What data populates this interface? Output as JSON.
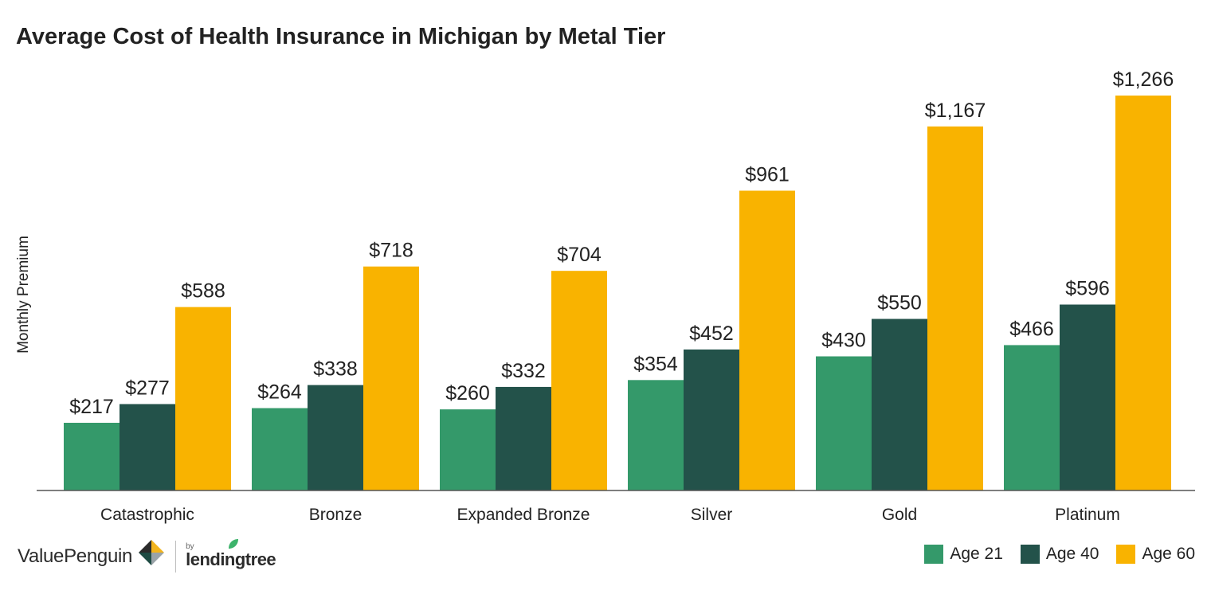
{
  "title": "Average Cost of Health Insurance in Michigan by Metal Tier",
  "ylabel": "Monthly Premium",
  "colors": {
    "age21": "#34996a",
    "age40": "#23524a",
    "age60": "#f9b300"
  },
  "brand": {
    "valuepenguin": "ValuePenguin",
    "by": "by",
    "lendingtree": "lendingtree"
  },
  "chart_data": {
    "type": "bar",
    "title": "Average Cost of Health Insurance in Michigan by Metal Tier",
    "xlabel": "",
    "ylabel": "Monthly Premium",
    "ylim": [
      0,
      1266
    ],
    "grid": false,
    "legend_position": "bottom-right",
    "categories": [
      "Catastrophic",
      "Bronze",
      "Expanded Bronze",
      "Silver",
      "Gold",
      "Platinum"
    ],
    "series": [
      {
        "name": "Age 21",
        "color": "#34996a",
        "values": [
          217,
          264,
          260,
          354,
          430,
          466
        ],
        "labels": [
          "$217",
          "$264",
          "$260",
          "$354",
          "$430",
          "$466"
        ]
      },
      {
        "name": "Age 40",
        "color": "#23524a",
        "values": [
          277,
          338,
          332,
          452,
          550,
          596
        ],
        "labels": [
          "$277",
          "$338",
          "$332",
          "$452",
          "$550",
          "$596"
        ]
      },
      {
        "name": "Age 60",
        "color": "#f9b300",
        "values": [
          588,
          718,
          704,
          961,
          1167,
          1266
        ],
        "labels": [
          "$588",
          "$718",
          "$704",
          "$961",
          "$1,167",
          "$1,266"
        ]
      }
    ]
  }
}
